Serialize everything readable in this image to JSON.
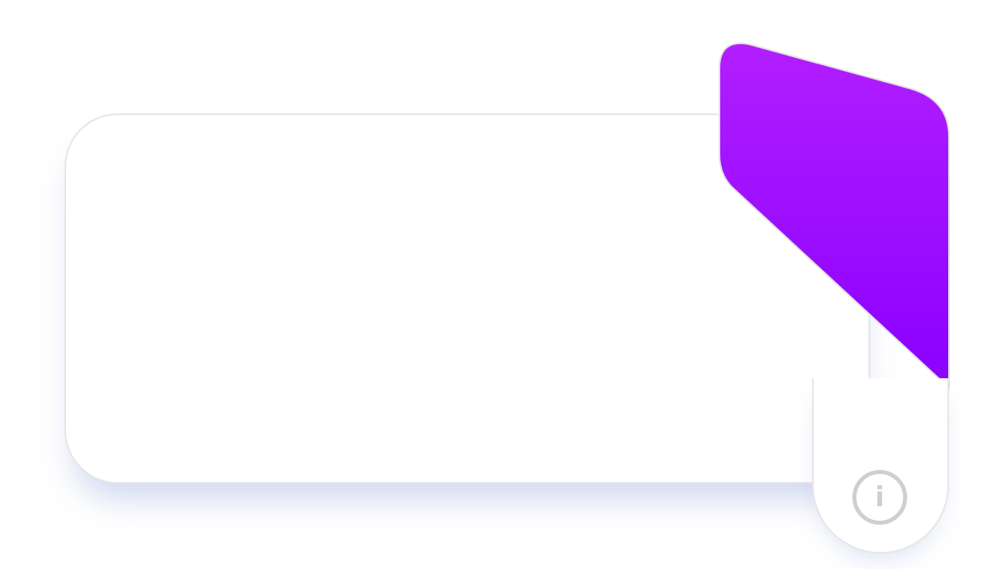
{
  "colors": {
    "accent_top": "#b21eff",
    "accent_bottom": "#8a00ff",
    "card_border": "#e6e6e6",
    "info_icon": "#cfcfcf"
  },
  "info": {
    "icon": "info-icon",
    "glyph": "i"
  }
}
